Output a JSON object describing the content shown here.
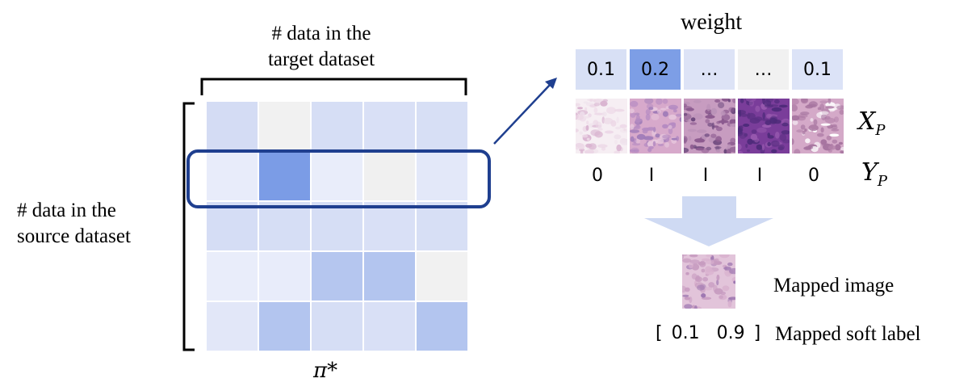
{
  "labels": {
    "target_line1": "# data in the",
    "target_line2": "target dataset",
    "source_line1": "# data in the",
    "source_line2": "source dataset",
    "pi": "π*",
    "weight": "weight",
    "xp": "X",
    "xp_sub": "P",
    "yp": "Y",
    "yp_sub": "P",
    "mapped_image": "Mapped image",
    "mapped_soft_label": "Mapped soft label"
  },
  "matrix_rows": [
    [
      "#d4dcf4",
      "#f1f1f1",
      "#d6def5",
      "#d9e0f6",
      "#d7dff5"
    ],
    [
      "#e8ecfa",
      "#7b9ce6",
      "#e9edfa",
      "#f0f0f0",
      "#e3e8f9"
    ],
    [
      "#d5ddf5",
      "#d6def5",
      "#d6def5",
      "#d9e0f6",
      "#d7dff5"
    ],
    [
      "#e9edfa",
      "#e8ecfa",
      "#b5c6ef",
      "#b3c5ef",
      "#f1f1f1"
    ],
    [
      "#e2e7f8",
      "#b3c5ef",
      "#d6def5",
      "#d9e0f6",
      "#b3c5ef"
    ]
  ],
  "weights": [
    {
      "text": "0.1",
      "color": "#d8e0f5"
    },
    {
      "text": "0.2",
      "color": "#7d9ee6"
    },
    {
      "text": "…",
      "color": "#dde3f6"
    },
    {
      "text": "…",
      "color": "#f1f1f1"
    },
    {
      "text": "0.1",
      "color": "#dce3f7"
    }
  ],
  "thumbnails": [
    {
      "name": "thumb-adipose-tissue",
      "colors": [
        "#ecd7e6",
        "#f6eef3",
        "#d9b4d0",
        "#efe2ec"
      ]
    },
    {
      "name": "thumb-fibrous-tissue",
      "colors": [
        "#b58bc2",
        "#d7a9cb",
        "#9f7bb8",
        "#e7c7dd"
      ]
    },
    {
      "name": "thumb-cellular-tissue-1",
      "colors": [
        "#8b5a8f",
        "#c79cc0",
        "#6e4a7e",
        "#b991b7"
      ]
    },
    {
      "name": "thumb-dense-nuclei",
      "colors": [
        "#4e2b7a",
        "#7a3d9a",
        "#5b2f83",
        "#9a5bb0"
      ]
    },
    {
      "name": "thumb-tissue-with-void",
      "colors": [
        "#a6749f",
        "#d4a9c8",
        "#ffffff",
        "#b483ab"
      ]
    }
  ],
  "y_labels": [
    "0",
    "I",
    "I",
    "I",
    "0"
  ],
  "mapped_thumb": {
    "colors": [
      "#c79bc0",
      "#e2c4da",
      "#9d76b0",
      "#d9b2cf"
    ]
  },
  "soft_label": {
    "open": "[",
    "v1": "0.1",
    "v2": "0.9",
    "close": "]"
  },
  "colors": {
    "highlight": "#1f3f8f",
    "arrow": "#1f3f8f",
    "down_arrow": "#cdd9f2"
  }
}
